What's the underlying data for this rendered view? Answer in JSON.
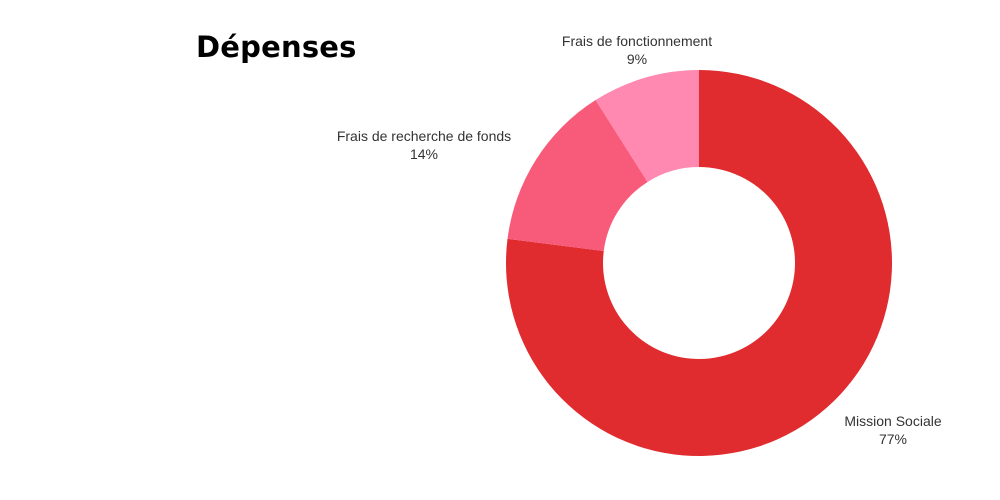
{
  "page_title": "Dépenses",
  "chart_data": {
    "type": "pie",
    "variant": "donut",
    "title": "Dépenses",
    "categories": [
      "Mission Sociale",
      "Frais de recherche de fonds",
      "Frais de fonctionnement"
    ],
    "values": [
      77,
      14,
      9
    ],
    "value_labels": [
      "77%",
      "14%",
      "9%"
    ],
    "unit": "%",
    "colors": [
      "#e02b2f",
      "#f75b79",
      "#ff89b0"
    ],
    "legend": "none"
  }
}
